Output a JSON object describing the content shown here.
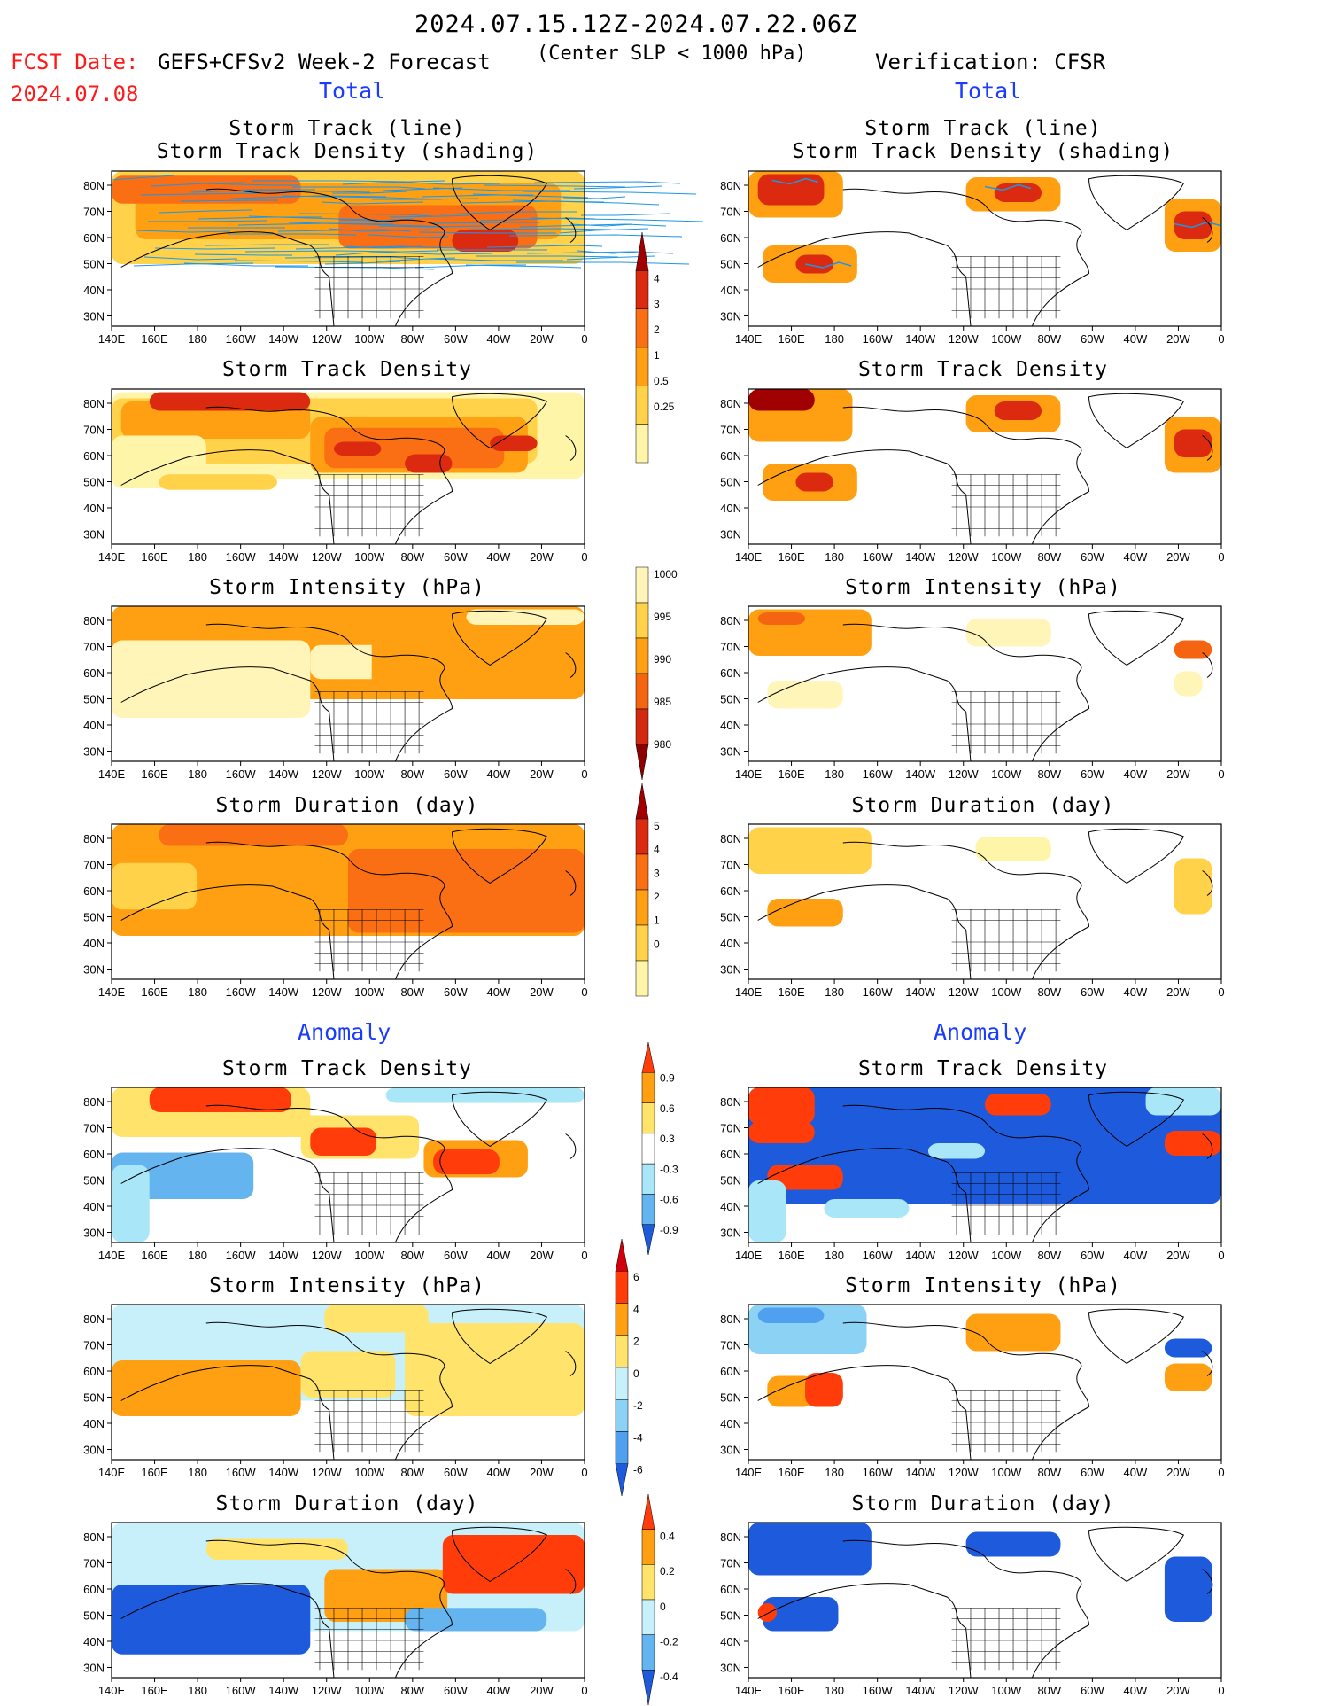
{
  "header": {
    "date_range": "2024.07.15.12Z-2024.07.22.06Z",
    "fcst_label": "FCST Date:",
    "fcst_date": "2024.07.08",
    "model": "GEFS+CFSv2 Week-2 Forecast",
    "criterion": "(Center SLP < 1000 hPa)",
    "verification": "Verification: CFSR"
  },
  "section_labels": {
    "total": "Total",
    "anomaly": "Anomaly"
  },
  "panel_titles": {
    "track_line": "Storm Track (line)",
    "track_shading": "Storm Track Density (shading)",
    "density": "Storm Track Density",
    "intensity": "Storm Intensity (hPa)",
    "duration": "Storm Duration (day)"
  },
  "axes": {
    "lat_labels": [
      "80N",
      "70N",
      "60N",
      "50N",
      "40N",
      "30N"
    ],
    "lon_labels": [
      "140E",
      "160E",
      "180",
      "160W",
      "140W",
      "120W",
      "100W",
      "80W",
      "60W",
      "40W",
      "20W",
      "0"
    ]
  },
  "colorbars": {
    "density_total": {
      "labels": [
        "4",
        "3",
        "2",
        "1",
        "0.5",
        "0.25"
      ],
      "colors": [
        "#a00000",
        "#dc2a10",
        "#fa6e14",
        "#ffa012",
        "#ffd24a",
        "#fff5a8"
      ]
    },
    "intensity_total": {
      "labels": [
        "1000",
        "995",
        "990",
        "985",
        "980"
      ],
      "colors": [
        "#fff5b8",
        "#ffd24a",
        "#ffa012",
        "#f56410",
        "#d22a10",
        "#8c0000"
      ]
    },
    "duration_total": {
      "labels": [
        "5",
        "4",
        "3",
        "2",
        "1",
        "0"
      ],
      "colors": [
        "#a00000",
        "#dc2a10",
        "#fa6e14",
        "#ffa012",
        "#ffd24a",
        "#fff5a8"
      ]
    },
    "density_anom": {
      "labels": [
        "0.9",
        "0.6",
        "0.3",
        "-0.3",
        "-0.6",
        "-0.9"
      ],
      "colors": [
        "#ff3c0a",
        "#ffa012",
        "#ffe36a",
        "#ffffff",
        "#a8e6f8",
        "#64b4f0",
        "#1e5adc"
      ]
    },
    "intensity_anom": {
      "labels": [
        "6",
        "4",
        "2",
        "0",
        "-2",
        "-4",
        "-6"
      ],
      "colors": [
        "#d2000a",
        "#ff3c0a",
        "#ffa012",
        "#ffe36a",
        "#c8f0fa",
        "#8cd2f5",
        "#50a0f0",
        "#1e5adc"
      ]
    },
    "duration_anom": {
      "labels": [
        "0.4",
        "0.2",
        "0",
        "-0.2",
        "-0.4"
      ],
      "colors": [
        "#ff3c0a",
        "#ffa012",
        "#ffe36a",
        "#c8f0fa",
        "#64b4f0",
        "#1e5adc"
      ]
    }
  },
  "legend_colors": {
    "total_high": "#dc2a10",
    "total_mid": "#ffa012",
    "anom_pos": "#ff3c0a",
    "anom_neg": "#1e5adc",
    "track_line": "#1e96e6"
  }
}
